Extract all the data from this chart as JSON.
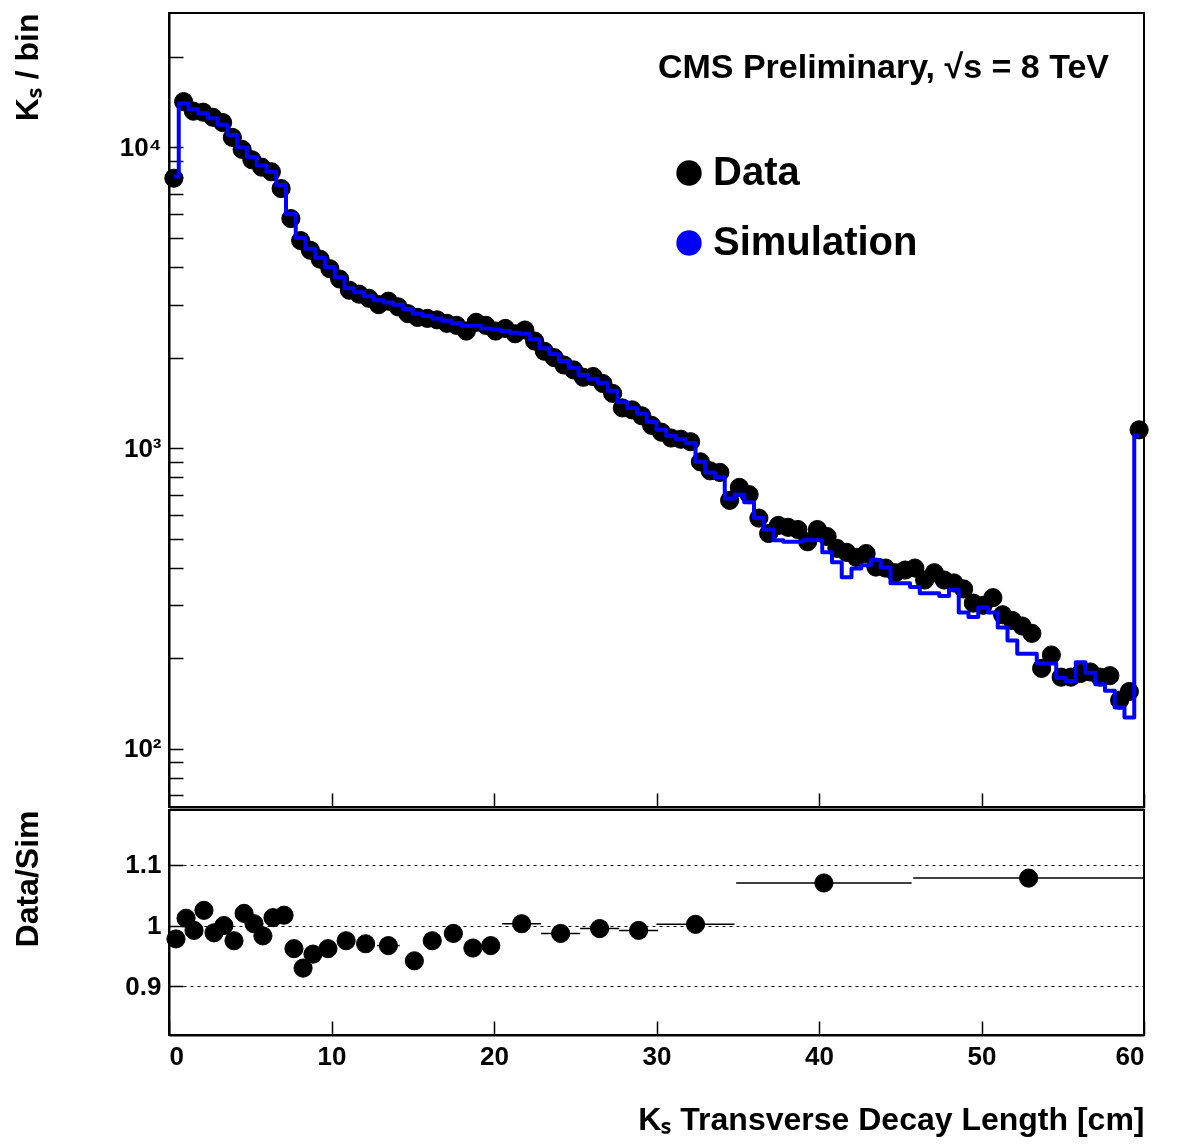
{
  "chart_data": [
    {
      "type": "scatter",
      "ylabel": "Kₛ / bin",
      "annotations": [
        "CMS Preliminary, √s = 8 TeV"
      ],
      "log": "y",
      "legend": "top right",
      "tick_labels": "y",
      "xlim": [
        0,
        60
      ],
      "xticks": [
        0,
        10,
        20,
        30,
        40,
        50,
        60
      ],
      "ylim": [
        64,
        28000
      ],
      "yticks": [
        {
          "value": 70,
          "label": null
        },
        {
          "value": 80,
          "label": null
        },
        {
          "value": 90,
          "label": null
        },
        {
          "value": 100,
          "label": "10²"
        },
        {
          "value": 200,
          "label": null
        },
        {
          "value": 300,
          "label": null
        },
        {
          "value": 400,
          "label": null
        },
        {
          "value": 500,
          "label": null
        },
        {
          "value": 600,
          "label": null
        },
        {
          "value": 700,
          "label": null
        },
        {
          "value": 800,
          "label": null
        },
        {
          "value": 900,
          "label": null
        },
        {
          "value": 1000,
          "label": "10³"
        },
        {
          "value": 2000,
          "label": null
        },
        {
          "value": 3000,
          "label": null
        },
        {
          "value": 4000,
          "label": null
        },
        {
          "value": 5000,
          "label": null
        },
        {
          "value": 6000,
          "label": null
        },
        {
          "value": 7000,
          "label": null
        },
        {
          "value": 8000,
          "label": null
        },
        {
          "value": 9000,
          "label": null
        },
        {
          "value": 10000,
          "label": "10⁴"
        },
        {
          "value": 20000,
          "label": null
        }
      ],
      "series": [
        {
          "name": "Data",
          "type": "scatter",
          "marker": "circle",
          "color": "#000000",
          "x": [
            0.3,
            0.9,
            1.5,
            2.1,
            2.7,
            3.3,
            3.9,
            4.5,
            5.1,
            5.7,
            6.3,
            6.9,
            7.5,
            8.1,
            8.7,
            9.3,
            9.9,
            10.5,
            11.1,
            11.7,
            12.3,
            12.9,
            13.5,
            14.1,
            14.7,
            15.3,
            15.9,
            16.5,
            17.1,
            17.7,
            18.3,
            18.9,
            19.5,
            20.1,
            20.7,
            21.3,
            21.9,
            22.5,
            23.1,
            23.7,
            24.3,
            24.9,
            25.5,
            26.1,
            26.7,
            27.3,
            27.9,
            28.5,
            29.1,
            29.7,
            30.3,
            30.9,
            31.5,
            32.1,
            32.7,
            33.3,
            33.9,
            34.5,
            35.1,
            35.7,
            36.3,
            36.9,
            37.5,
            38.1,
            38.7,
            39.3,
            39.9,
            40.5,
            41.1,
            41.7,
            42.3,
            42.9,
            43.5,
            44.1,
            44.7,
            45.3,
            45.9,
            46.5,
            47.1,
            47.7,
            48.3,
            48.9,
            49.5,
            50.1,
            50.7,
            51.3,
            51.9,
            52.5,
            53.1,
            53.7,
            54.3,
            54.9,
            55.5,
            56.1,
            56.7,
            57.3,
            57.9,
            58.5,
            59.1,
            59.7
          ],
          "values": [
            7900,
            14200,
            13200,
            13100,
            12600,
            12100,
            10800,
            9850,
            9100,
            8600,
            8300,
            7300,
            5800,
            4900,
            4550,
            4250,
            3950,
            3650,
            3350,
            3250,
            3150,
            3000,
            3080,
            2950,
            2800,
            2720,
            2700,
            2670,
            2600,
            2560,
            2450,
            2620,
            2560,
            2450,
            2500,
            2400,
            2470,
            2270,
            2100,
            2000,
            1890,
            1820,
            1720,
            1730,
            1640,
            1520,
            1360,
            1340,
            1280,
            1190,
            1130,
            1080,
            1070,
            1050,
            900,
            840,
            830,
            670,
            740,
            700,
            585,
            520,
            553,
            545,
            536,
            488,
            536,
            508,
            464,
            450,
            433,
            446,
            402,
            399,
            385,
            393,
            399,
            364,
            385,
            364,
            356,
            340,
            305,
            300,
            318,
            279,
            267,
            256,
            242,
            185,
            205,
            173,
            173,
            178,
            180,
            173,
            175,
            145,
            155,
            1150
          ]
        },
        {
          "name": "Simulation",
          "type": "step",
          "marker": "none",
          "color": "#0000ff",
          "x": [
            0.3,
            0.9,
            1.5,
            2.1,
            2.7,
            3.3,
            3.9,
            4.5,
            5.1,
            5.7,
            6.3,
            6.9,
            7.5,
            8.1,
            8.7,
            9.3,
            9.9,
            10.5,
            11.1,
            11.7,
            12.3,
            12.9,
            13.5,
            14.1,
            14.7,
            15.3,
            15.9,
            16.5,
            17.1,
            17.7,
            18.3,
            18.9,
            19.5,
            20.1,
            20.7,
            21.3,
            21.9,
            22.5,
            23.1,
            23.7,
            24.3,
            24.9,
            25.5,
            26.1,
            26.7,
            27.3,
            27.9,
            28.5,
            29.1,
            29.7,
            30.3,
            30.9,
            31.5,
            32.1,
            32.7,
            33.3,
            33.9,
            34.5,
            35.1,
            35.7,
            36.3,
            36.9,
            37.5,
            38.1,
            38.7,
            39.3,
            39.9,
            40.5,
            41.1,
            41.7,
            42.3,
            42.9,
            43.5,
            44.1,
            44.7,
            45.3,
            45.9,
            46.5,
            47.1,
            47.7,
            48.3,
            48.9,
            49.5,
            50.1,
            50.7,
            51.3,
            51.9,
            52.5,
            53.1,
            53.7,
            54.3,
            54.9,
            55.5,
            56.1,
            56.7,
            57.3,
            57.9,
            58.5,
            59.1,
            59.7
          ],
          "values": [
            8000,
            14000,
            13400,
            13000,
            12500,
            11900,
            11000,
            10000,
            9300,
            8700,
            8300,
            7500,
            6000,
            5000,
            4600,
            4300,
            4000,
            3700,
            3400,
            3300,
            3200,
            3100,
            3050,
            3000,
            2900,
            2800,
            2750,
            2700,
            2650,
            2600,
            2550,
            2550,
            2500,
            2480,
            2450,
            2420,
            2400,
            2300,
            2150,
            2050,
            1950,
            1850,
            1750,
            1700,
            1650,
            1550,
            1420,
            1360,
            1300,
            1220,
            1150,
            1100,
            1070,
            1040,
            900,
            830,
            800,
            680,
            700,
            660,
            585,
            536,
            494,
            488,
            488,
            494,
            494,
            450,
            417,
            372,
            398,
            408,
            424,
            401,
            355,
            355,
            345,
            329,
            329,
            322,
            338,
            284,
            274,
            295,
            284,
            253,
            229,
            207,
            207,
            192,
            192,
            172,
            168,
            194,
            179,
            164,
            156,
            137,
            127,
            1100
          ]
        }
      ]
    },
    {
      "type": "scatter",
      "xlabel": "Kₛ Transverse Decay Length [cm]",
      "ylabel": "Data/Sim",
      "grid": "y",
      "marker": "circle",
      "xlim": [
        0,
        60
      ],
      "xticks": [
        0,
        10,
        20,
        30,
        40,
        50,
        60
      ],
      "ylim": [
        0.82,
        1.19
      ],
      "yticks": [
        0.9,
        1,
        {
          "value": 1.1,
          "label": "1.1"
        }
      ],
      "series": [
        {
          "color": "#000000",
          "x": [
            0.43,
            1.05,
            1.54,
            2.15,
            2.77,
            3.38,
            4.0,
            4.62,
            5.23,
            5.78,
            6.4,
            7.08,
            7.69,
            8.25,
            8.86,
            9.78,
            10.9,
            12.1,
            13.5,
            15.1,
            16.2,
            17.5,
            18.7,
            19.8,
            21.7,
            24.1,
            26.5,
            28.9,
            32.4,
            40.3,
            52.9
          ],
          "values": [
            0.978,
            1.012,
            0.992,
            1.025,
            0.988,
            1.0,
            0.975,
            1.02,
            1.003,
            0.983,
            1.013,
            1.017,
            0.962,
            0.93,
            0.953,
            0.962,
            0.975,
            0.97,
            0.967,
            0.942,
            0.975,
            0.987,
            0.963,
            0.967,
            1.003,
            0.987,
            0.995,
            0.992,
            1.002,
            1.07,
            1.078
          ],
          "xerrors": [
            null,
            null,
            null,
            null,
            null,
            null,
            null,
            null,
            null,
            null,
            null,
            null,
            null,
            null,
            null,
            null,
            null,
            null,
            0.7,
            null,
            null,
            null,
            null,
            null,
            1.2,
            1.2,
            1.2,
            1.2,
            2.4,
            5.4,
            7.1
          ]
        }
      ]
    }
  ]
}
